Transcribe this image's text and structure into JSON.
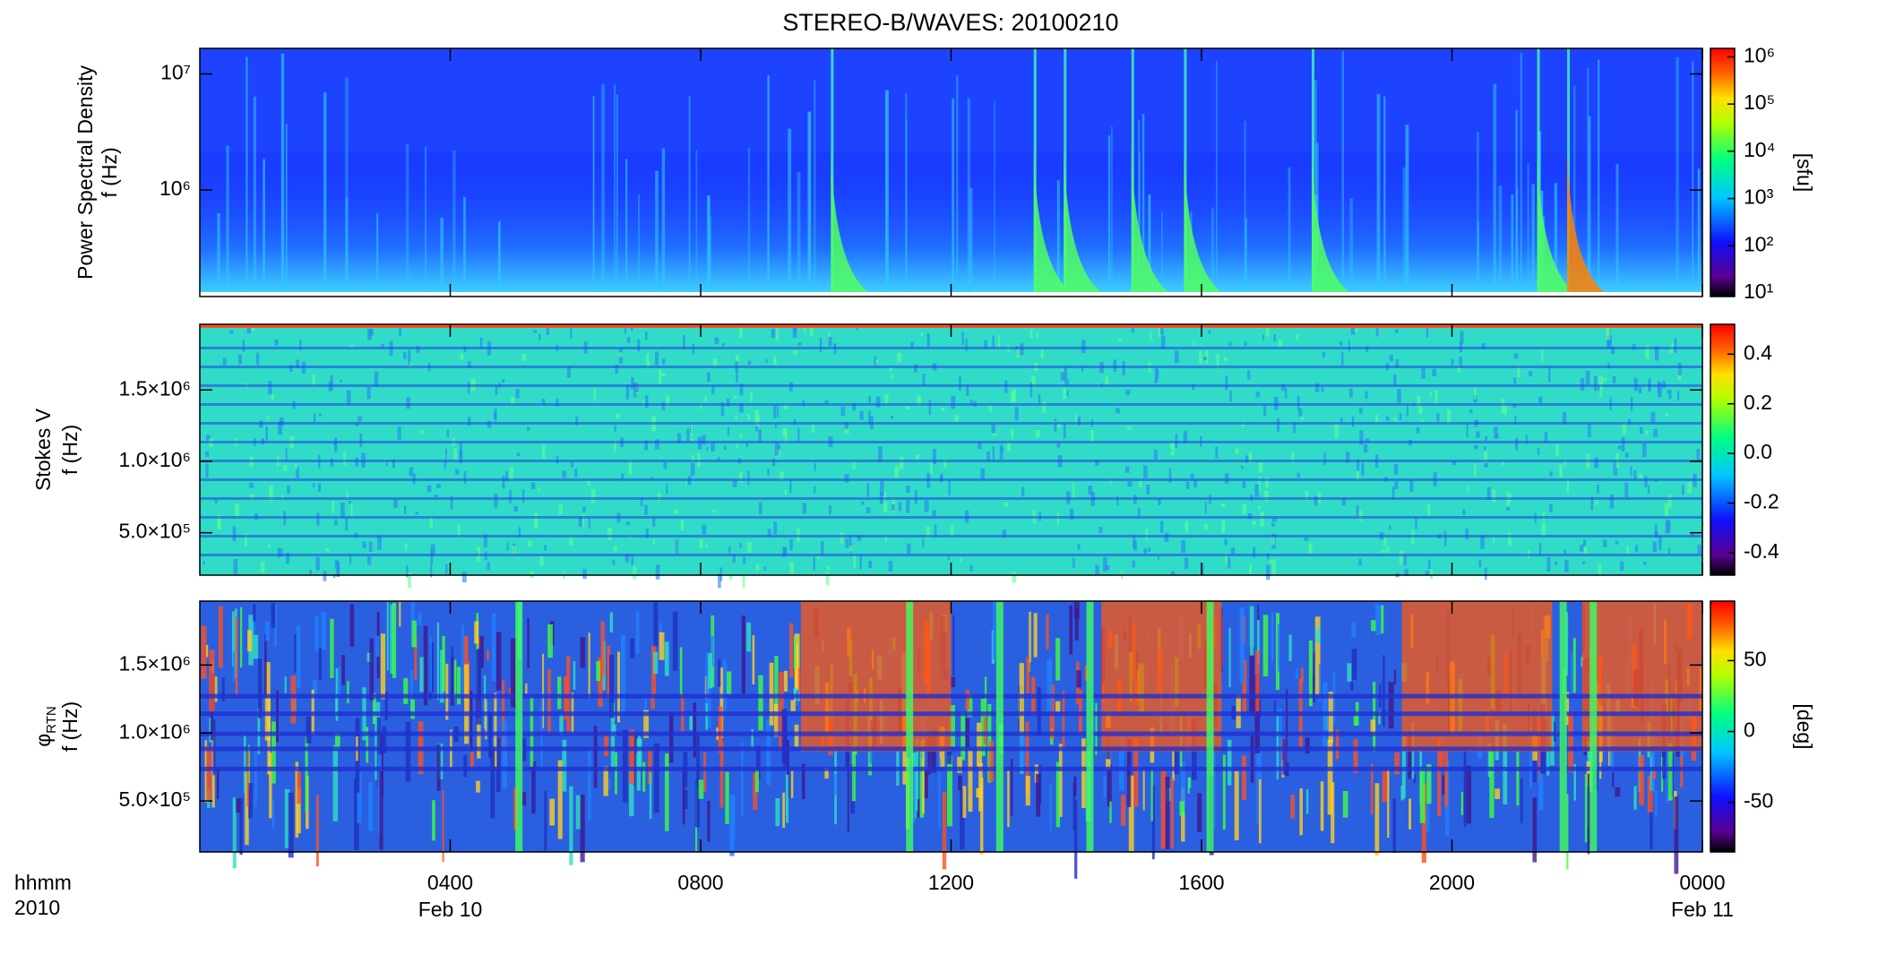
{
  "title": "STEREO-B/WAVES: 20100210",
  "xlim": [
    0,
    24
  ],
  "xticks": [
    {
      "value": 4,
      "label": "0400"
    },
    {
      "value": 8,
      "label": "0800"
    },
    {
      "value": 12,
      "label": "1200"
    },
    {
      "value": 16,
      "label": "1600"
    },
    {
      "value": 20,
      "label": "2000"
    },
    {
      "value": 24,
      "label": "0000"
    }
  ],
  "x_date_labels": [
    {
      "value": 4,
      "label": "Feb 10"
    },
    {
      "value": 24,
      "label": "Feb 11"
    }
  ],
  "x_row_labels": [
    "hhmm",
    "2010"
  ],
  "chart_data": [
    {
      "type": "spectrogram",
      "ylabel": [
        "Power Spectral Density",
        "f (Hz)"
      ],
      "ylog": true,
      "ylim": [
        121000,
        16600000
      ],
      "yticks": [
        {
          "value": 1000000,
          "label": "10⁶"
        },
        {
          "value": 10000000,
          "label": "10⁷"
        }
      ],
      "colorbar": {
        "log": true,
        "lim": [
          8.4,
          1510000
        ],
        "ticks": [
          {
            "value": 10,
            "label": "10¹"
          },
          {
            "value": 100,
            "label": "10²"
          },
          {
            "value": 1000,
            "label": "10³"
          },
          {
            "value": 10000,
            "label": "10⁴"
          },
          {
            "value": 100000,
            "label": "10⁵"
          },
          {
            "value": 1000000,
            "label": "10⁶"
          }
        ],
        "label": "[sfu]"
      }
    },
    {
      "type": "spectrogram",
      "ylabel": [
        "Stokes V",
        "f (Hz)"
      ],
      "ylog": false,
      "ylim": [
        203000,
        1960000
      ],
      "yticks": [
        {
          "value": 500000,
          "label": "5.0×10⁵"
        },
        {
          "value": 1000000,
          "label": "1.0×10⁶"
        },
        {
          "value": 1500000,
          "label": "1.5×10⁶"
        }
      ],
      "colorbar": {
        "log": false,
        "lim": [
          -0.49,
          0.52
        ],
        "ticks": [
          -0.4,
          -0.2,
          {
            "value": 0,
            "label": "0.0"
          },
          0.2,
          0.4
        ]
      }
    },
    {
      "type": "spectrogram",
      "ylabel": [
        "φ",
        "f (Hz)"
      ],
      "ylabel_sub": "RTN",
      "ylog": false,
      "ylim": [
        125000,
        1970000
      ],
      "yticks": [
        {
          "value": 500000,
          "label": "5.0×10⁵"
        },
        {
          "value": 1000000,
          "label": "1.0×10⁶"
        },
        {
          "value": 1500000,
          "label": "1.5×10⁶"
        }
      ],
      "colorbar": {
        "log": false,
        "lim": [
          -85,
          92
        ],
        "ticks": [
          -50,
          0,
          50
        ],
        "label": "[deg]"
      }
    }
  ]
}
